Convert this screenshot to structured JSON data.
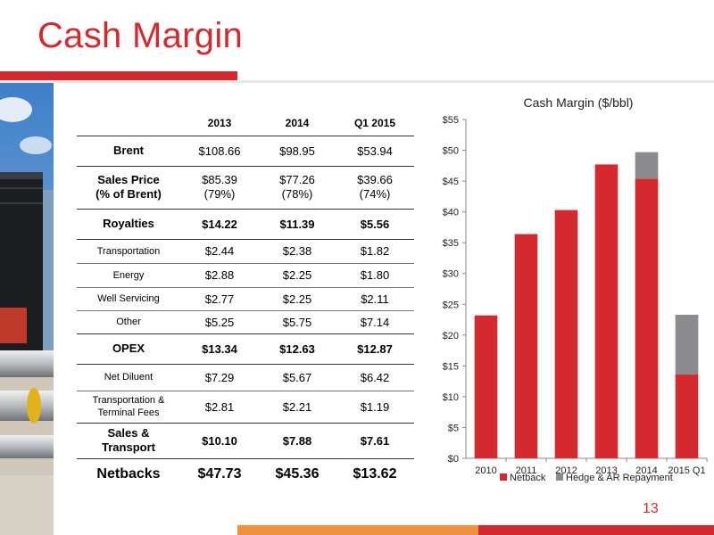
{
  "slide": {
    "title": "Cash Margin",
    "page_number": "13",
    "accent_color": "#d42a2f",
    "secondary_color": "#f2913d"
  },
  "table": {
    "headers": [
      "2013",
      "2014",
      "Q1 2015"
    ],
    "rows": [
      {
        "label": "Brent",
        "values": [
          "$108.66",
          "$98.95",
          "$53.94"
        ]
      },
      {
        "label_line1": "Sales Price",
        "label_line2": "(% of Brent)",
        "values": [
          "$85.39",
          "$77.26",
          "$39.66"
        ],
        "values_line2": [
          "(79%)",
          "(78%)",
          "(74%)"
        ]
      },
      {
        "label": "Royalties",
        "values": [
          "$14.22",
          "$11.39",
          "$5.56"
        ]
      },
      {
        "label": "Transportation",
        "values": [
          "$2.44",
          "$2.38",
          "$1.82"
        ]
      },
      {
        "label": "Energy",
        "values": [
          "$2.88",
          "$2.25",
          "$1.80"
        ]
      },
      {
        "label": "Well Servicing",
        "values": [
          "$2.77",
          "$2.25",
          "$2.11"
        ]
      },
      {
        "label": "Other",
        "values": [
          "$5.25",
          "$5.75",
          "$7.14"
        ]
      },
      {
        "label": "OPEX",
        "values": [
          "$13.34",
          "$12.63",
          "$12.87"
        ]
      },
      {
        "label": "Net Diluent",
        "values": [
          "$7.29",
          "$5.67",
          "$6.42"
        ]
      },
      {
        "label_line1": "Transportation &",
        "label_line2": "Terminal Fees",
        "values": [
          "$2.81",
          "$2.21",
          "$1.19"
        ]
      },
      {
        "label_line1": "Sales &",
        "label_line2": "Transport",
        "values": [
          "$10.10",
          "$7.88",
          "$7.61"
        ]
      },
      {
        "label": "Netbacks",
        "values": [
          "$47.73",
          "$45.36",
          "$13.62"
        ]
      }
    ]
  },
  "chart_data": {
    "type": "bar",
    "stacked": true,
    "title": "Cash Margin ($/bbl)",
    "categories": [
      "2010",
      "2011",
      "2012",
      "2013",
      "2014",
      "2015 Q1"
    ],
    "series": [
      {
        "name": "Netback",
        "color": "#d42a2f",
        "values": [
          23.2,
          36.4,
          40.3,
          47.7,
          45.4,
          13.6
        ]
      },
      {
        "name": "Hedge & AR Repayment",
        "color": "#8c8c8f",
        "values": [
          0,
          0,
          0,
          0,
          4.3,
          9.7
        ]
      }
    ],
    "ylim": [
      0,
      55
    ],
    "yticks": [
      "$0",
      "$5",
      "$10",
      "$15",
      "$20",
      "$25",
      "$30",
      "$35",
      "$40",
      "$45",
      "$50",
      "$55"
    ],
    "ytick_values": [
      0,
      5,
      10,
      15,
      20,
      25,
      30,
      35,
      40,
      45,
      50,
      55
    ],
    "grid": false,
    "legend_position": "bottom"
  }
}
